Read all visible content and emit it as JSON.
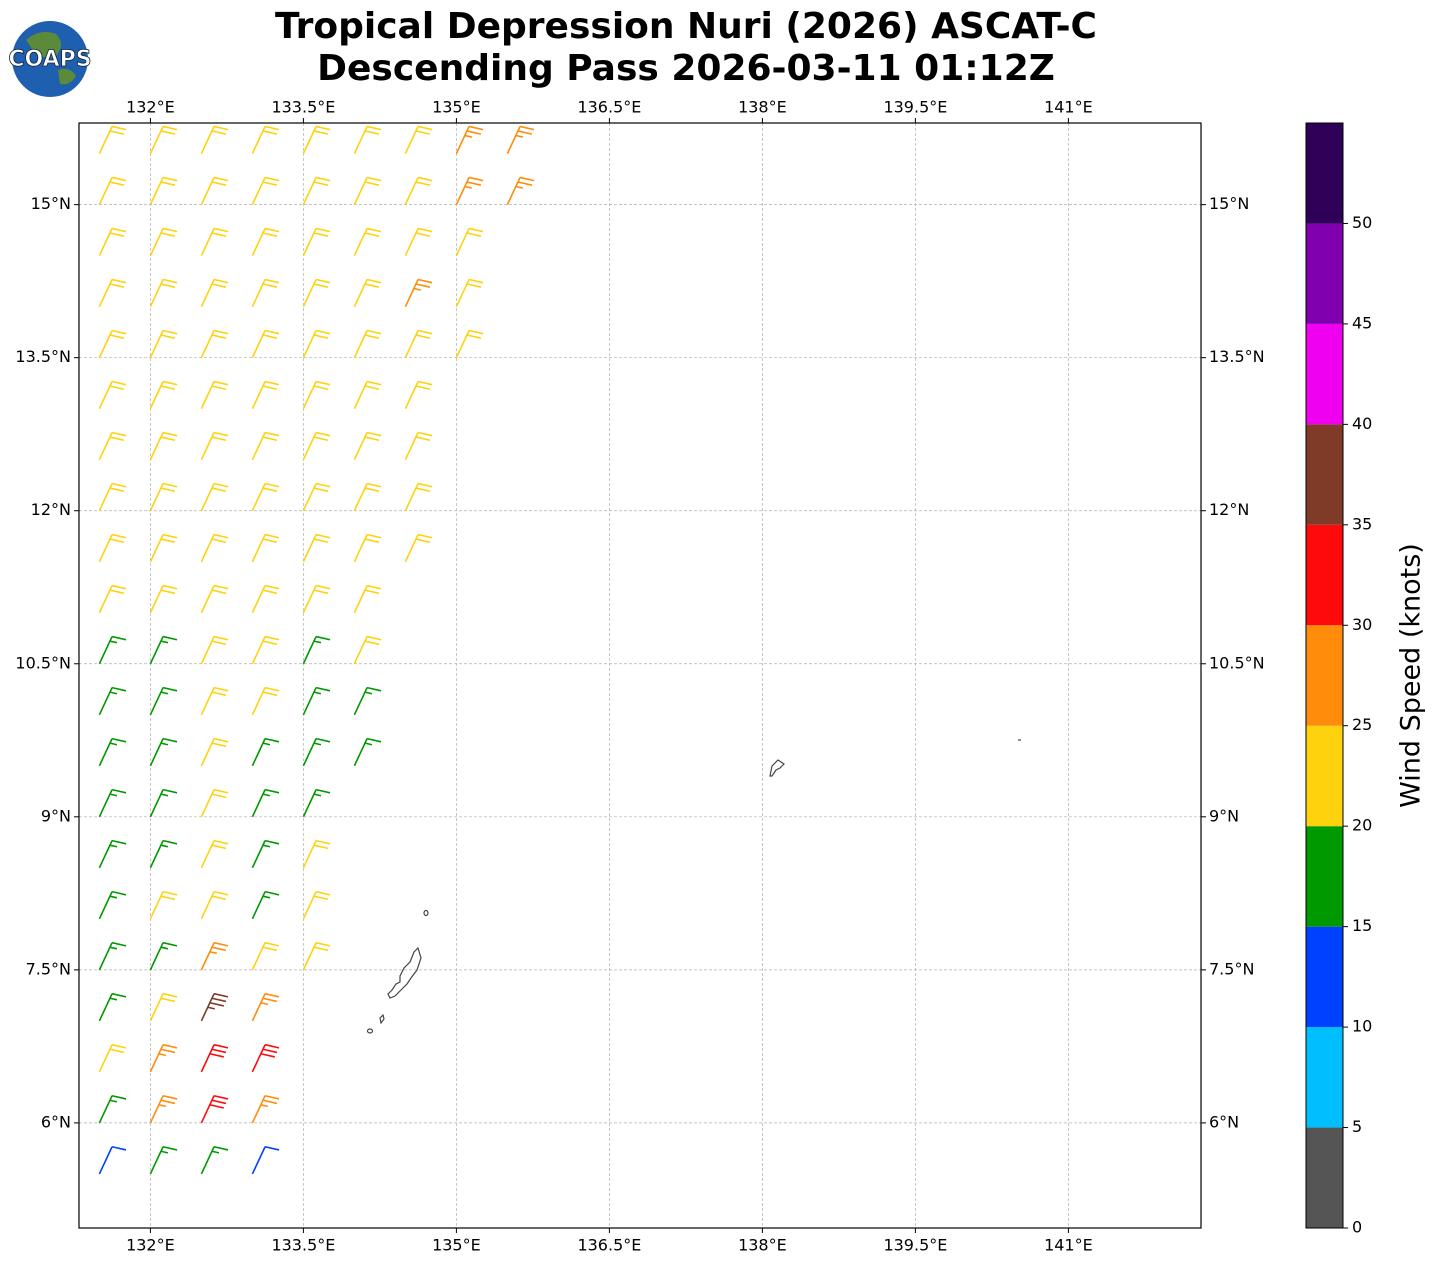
{
  "chart_data": {
    "type": "wind-barb-map",
    "title": [
      "Tropical Depression Nuri (2026) ASCAT-C",
      "Descending Pass 2026-03-11 01:12Z"
    ],
    "logo_text": "COAPS",
    "xlim": [
      131.3,
      142.3
    ],
    "ylim": [
      4.97,
      15.8
    ],
    "xticks": [
      {
        "value": 132,
        "label": "132°E"
      },
      {
        "value": 133.5,
        "label": "133.5°E"
      },
      {
        "value": 135,
        "label": "135°E"
      },
      {
        "value": 136.5,
        "label": "136.5°E"
      },
      {
        "value": 138,
        "label": "138°E"
      },
      {
        "value": 139.5,
        "label": "139.5°E"
      },
      {
        "value": 141,
        "label": "141°E"
      }
    ],
    "yticks": [
      {
        "value": 6,
        "label": "6°N"
      },
      {
        "value": 7.5,
        "label": "7.5°N"
      },
      {
        "value": 9,
        "label": "9°N"
      },
      {
        "value": 10.5,
        "label": "10.5°N"
      },
      {
        "value": 12,
        "label": "12°N"
      },
      {
        "value": 13.5,
        "label": "13.5°N"
      },
      {
        "value": 15,
        "label": "15°N"
      }
    ],
    "grid": true,
    "wind_from_deg": 25,
    "colorbar": {
      "label": "Wind Speed (knots)",
      "lim": [
        0,
        55
      ],
      "bounds": [
        0,
        5,
        10,
        15,
        20,
        25,
        30,
        35,
        40,
        45,
        50,
        55
      ],
      "colors": [
        "#555555",
        "#00bfff",
        "#0040ff",
        "#009900",
        "#ffd20e",
        "#ff8c0a",
        "#ff0a0a",
        "#7f3b27",
        "#f000f0",
        "#8000b0",
        "#2e0057"
      ],
      "ticks": [
        0,
        5,
        10,
        15,
        20,
        25,
        30,
        35,
        40,
        45,
        50
      ]
    },
    "barbs": [
      [
        131.5,
        15.5,
        22
      ],
      [
        132,
        15.5,
        22
      ],
      [
        132.5,
        15.5,
        22
      ],
      [
        133,
        15.5,
        22
      ],
      [
        133.5,
        15.5,
        22
      ],
      [
        134,
        15.5,
        22
      ],
      [
        134.5,
        15.5,
        22
      ],
      [
        135,
        15.5,
        27
      ],
      [
        135.5,
        15.5,
        27
      ],
      [
        131.5,
        15,
        22
      ],
      [
        132,
        15,
        22
      ],
      [
        132.5,
        15,
        22
      ],
      [
        133,
        15,
        22
      ],
      [
        133.5,
        15,
        22
      ],
      [
        134,
        15,
        22
      ],
      [
        134.5,
        15,
        22
      ],
      [
        135,
        15,
        27
      ],
      [
        135.5,
        15,
        27
      ],
      [
        131.5,
        14.5,
        22
      ],
      [
        132,
        14.5,
        22
      ],
      [
        132.5,
        14.5,
        22
      ],
      [
        133,
        14.5,
        22
      ],
      [
        133.5,
        14.5,
        22
      ],
      [
        134,
        14.5,
        22
      ],
      [
        134.5,
        14.5,
        22
      ],
      [
        135,
        14.5,
        22
      ],
      [
        131.5,
        14,
        22
      ],
      [
        132,
        14,
        22
      ],
      [
        132.5,
        14,
        22
      ],
      [
        133,
        14,
        22
      ],
      [
        133.5,
        14,
        22
      ],
      [
        134,
        14,
        22
      ],
      [
        134.5,
        14,
        27
      ],
      [
        135,
        14,
        22
      ],
      [
        131.5,
        13.5,
        22
      ],
      [
        132,
        13.5,
        22
      ],
      [
        132.5,
        13.5,
        22
      ],
      [
        133,
        13.5,
        22
      ],
      [
        133.5,
        13.5,
        22
      ],
      [
        134,
        13.5,
        22
      ],
      [
        134.5,
        13.5,
        22
      ],
      [
        135,
        13.5,
        22
      ],
      [
        131.5,
        13,
        22
      ],
      [
        132,
        13,
        22
      ],
      [
        132.5,
        13,
        22
      ],
      [
        133,
        13,
        22
      ],
      [
        133.5,
        13,
        22
      ],
      [
        134,
        13,
        22
      ],
      [
        134.5,
        13,
        22
      ],
      [
        131.5,
        12.5,
        22
      ],
      [
        132,
        12.5,
        22
      ],
      [
        132.5,
        12.5,
        22
      ],
      [
        133,
        12.5,
        22
      ],
      [
        133.5,
        12.5,
        22
      ],
      [
        134,
        12.5,
        22
      ],
      [
        134.5,
        12.5,
        22
      ],
      [
        131.5,
        12,
        22
      ],
      [
        132,
        12,
        22
      ],
      [
        132.5,
        12,
        22
      ],
      [
        133,
        12,
        22
      ],
      [
        133.5,
        12,
        22
      ],
      [
        134,
        12,
        22
      ],
      [
        134.5,
        12,
        22
      ],
      [
        131.5,
        11.5,
        22
      ],
      [
        132,
        11.5,
        22
      ],
      [
        132.5,
        11.5,
        22
      ],
      [
        133,
        11.5,
        22
      ],
      [
        133.5,
        11.5,
        22
      ],
      [
        134,
        11.5,
        22
      ],
      [
        134.5,
        11.5,
        22
      ],
      [
        131.5,
        11,
        22
      ],
      [
        132,
        11,
        22
      ],
      [
        132.5,
        11,
        22
      ],
      [
        133,
        11,
        22
      ],
      [
        133.5,
        11,
        22
      ],
      [
        134,
        11,
        22
      ],
      [
        131.5,
        10.5,
        17
      ],
      [
        132,
        10.5,
        17
      ],
      [
        132.5,
        10.5,
        22
      ],
      [
        133,
        10.5,
        22
      ],
      [
        133.5,
        10.5,
        17
      ],
      [
        134,
        10.5,
        22
      ],
      [
        131.5,
        10,
        17
      ],
      [
        132,
        10,
        17
      ],
      [
        132.5,
        10,
        22
      ],
      [
        133,
        10,
        22
      ],
      [
        133.5,
        10,
        17
      ],
      [
        134,
        10,
        17
      ],
      [
        131.5,
        9.5,
        17
      ],
      [
        132,
        9.5,
        17
      ],
      [
        132.5,
        9.5,
        22
      ],
      [
        133,
        9.5,
        17
      ],
      [
        133.5,
        9.5,
        17
      ],
      [
        134,
        9.5,
        17
      ],
      [
        131.5,
        9,
        17
      ],
      [
        132,
        9,
        17
      ],
      [
        132.5,
        9,
        22
      ],
      [
        133,
        9,
        17
      ],
      [
        133.5,
        9,
        17
      ],
      [
        131.5,
        8.5,
        17
      ],
      [
        132,
        8.5,
        17
      ],
      [
        132.5,
        8.5,
        22
      ],
      [
        133,
        8.5,
        17
      ],
      [
        133.5,
        8.5,
        22
      ],
      [
        131.5,
        8,
        17
      ],
      [
        132,
        8,
        22
      ],
      [
        132.5,
        8,
        22
      ],
      [
        133,
        8,
        17
      ],
      [
        133.5,
        8,
        22
      ],
      [
        131.5,
        7.5,
        17
      ],
      [
        132,
        7.5,
        17
      ],
      [
        132.5,
        7.5,
        27
      ],
      [
        133,
        7.5,
        22
      ],
      [
        133.5,
        7.5,
        22
      ],
      [
        131.5,
        7,
        17
      ],
      [
        132,
        7,
        22
      ],
      [
        132.5,
        7,
        37
      ],
      [
        133,
        7,
        27
      ],
      [
        131.5,
        6.5,
        22
      ],
      [
        132,
        6.5,
        27
      ],
      [
        132.5,
        6.5,
        32
      ],
      [
        133,
        6.5,
        32
      ],
      [
        131.5,
        6,
        17
      ],
      [
        132,
        6,
        27
      ],
      [
        132.5,
        6,
        32
      ],
      [
        133,
        6,
        27
      ],
      [
        131.5,
        5.5,
        12
      ],
      [
        132,
        5.5,
        17
      ],
      [
        132.5,
        5.5,
        17
      ],
      [
        133,
        5.5,
        12
      ]
    ]
  }
}
